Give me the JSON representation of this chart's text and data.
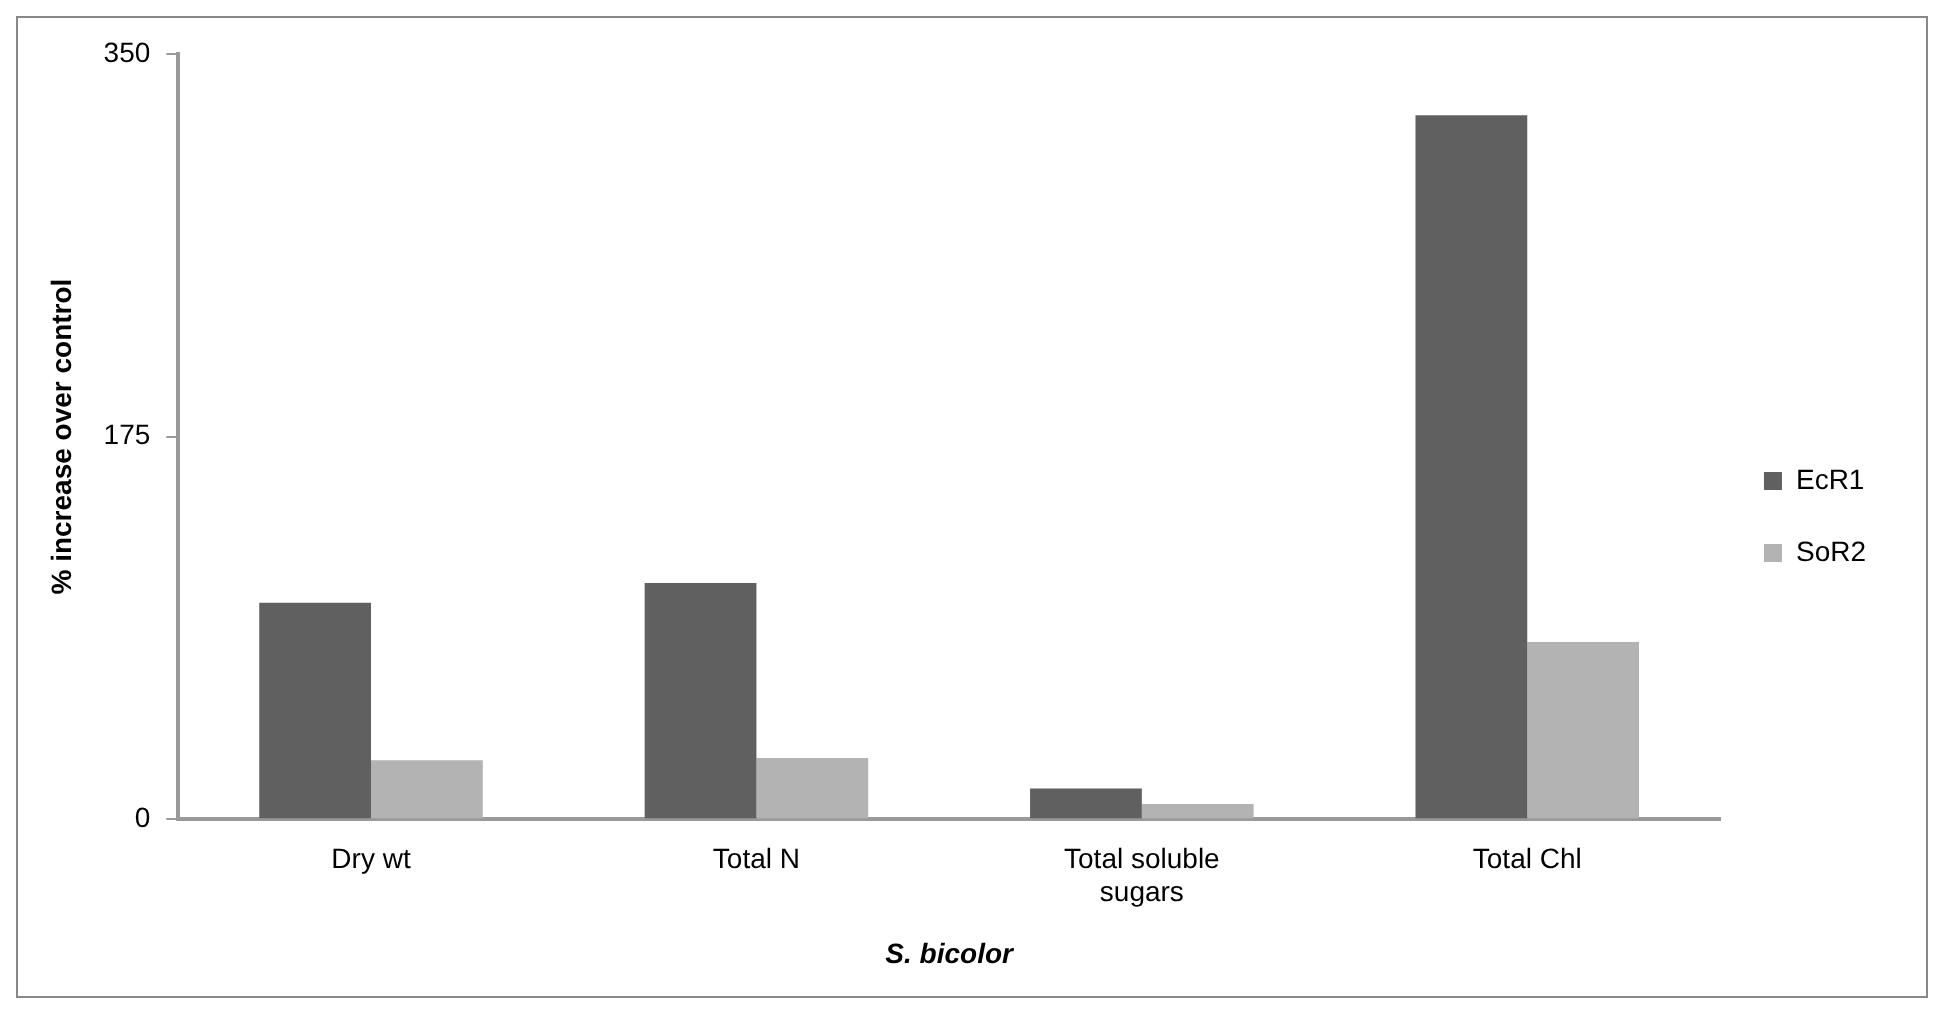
{
  "chart_data": {
    "type": "bar",
    "xlabel": "S. bicolor",
    "ylabel": "% increase over control",
    "categories": [
      "Dry wt",
      "Total N",
      "Total soluble sugars",
      "Total Chl"
    ],
    "series": [
      {
        "name": "EcR1",
        "color": "#606060",
        "values": [
          99,
          108,
          14,
          322
        ]
      },
      {
        "name": "SoR2",
        "color": "#b3b3b3",
        "values": [
          27,
          28,
          7,
          81
        ]
      }
    ],
    "ylim": [
      0,
      350
    ],
    "yticks": [
      0,
      175,
      350
    ],
    "grid": false,
    "legend": "right"
  }
}
